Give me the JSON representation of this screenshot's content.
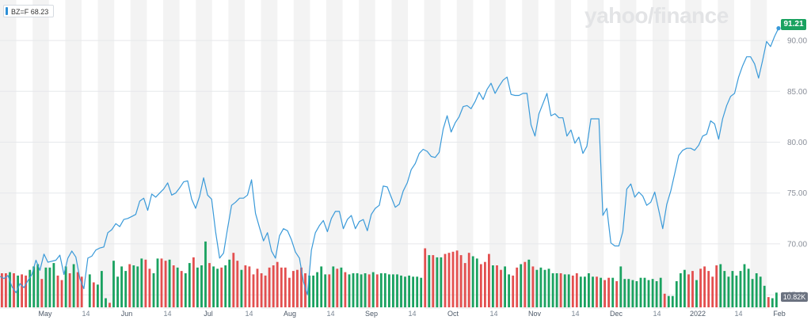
{
  "legend": {
    "ticker": "BZ=F",
    "value": "68.23"
  },
  "watermark": "yahoo/finance",
  "badges": {
    "last_price": "91.21",
    "volume": "10.82K"
  },
  "colors": {
    "price_line": "#3a9ad9",
    "up_volume": "#1aa260",
    "down_volume": "#e34f4f",
    "stripe": "#f3f3f3",
    "last_price_bg": "#1aa260"
  },
  "chart_data": {
    "type": "line",
    "x_ticks": [
      {
        "label": "May",
        "month": true
      },
      {
        "label": "14"
      },
      {
        "label": "Jun",
        "month": true
      },
      {
        "label": "14"
      },
      {
        "label": "Jul",
        "month": true
      },
      {
        "label": "14"
      },
      {
        "label": "Aug",
        "month": true
      },
      {
        "label": "14"
      },
      {
        "label": "Sep",
        "month": true
      },
      {
        "label": "14"
      },
      {
        "label": "Oct",
        "month": true
      },
      {
        "label": "14"
      },
      {
        "label": "Nov",
        "month": true
      },
      {
        "label": "14"
      },
      {
        "label": "Dec",
        "month": true
      },
      {
        "label": "14"
      },
      {
        "label": "2022",
        "month": true
      },
      {
        "label": "14"
      },
      {
        "label": "Feb",
        "month": true
      }
    ],
    "y_ticks": [
      "90.00",
      "85.00",
      "80.00",
      "75.00",
      "70.00",
      "65.00"
    ],
    "ylim": [
      64.0,
      91.8
    ],
    "series": [
      {
        "values": [
          66.8,
          66.6,
          66.9,
          65.8,
          65.2,
          66.1,
          65.7,
          66.4,
          67.0,
          68.4,
          67.4,
          69.0,
          68.2,
          68.3,
          68.4,
          68.9,
          67.0,
          68.6,
          69.3,
          68.7,
          66.6,
          65.6,
          68.6,
          68.8,
          69.4,
          69.6,
          69.7,
          71.1,
          71.4,
          72.0,
          71.7,
          72.4,
          72.5,
          72.7,
          72.9,
          74.2,
          74.5,
          73.3,
          74.9,
          74.6,
          75.0,
          75.4,
          76.0,
          74.8,
          75.0,
          75.5,
          76.1,
          76.2,
          74.4,
          73.5,
          74.7,
          76.5,
          74.8,
          74.4,
          71.2,
          68.6,
          69.1,
          71.5,
          73.8,
          74.1,
          74.5,
          74.5,
          74.8,
          76.3,
          73.0,
          71.6,
          70.3,
          71.1,
          69.3,
          68.6,
          70.8,
          71.5,
          71.3,
          70.4,
          69.2,
          68.6,
          66.3,
          65.0,
          69.4,
          71.1,
          71.8,
          72.3,
          71.2,
          72.5,
          73.2,
          73.2,
          71.5,
          72.4,
          72.8,
          71.5,
          72.2,
          72.4,
          71.3,
          72.9,
          73.5,
          73.8,
          75.7,
          75.6,
          74.6,
          73.6,
          73.9,
          75.2,
          76.0,
          77.3,
          77.9,
          78.9,
          79.3,
          79.1,
          78.6,
          78.5,
          79.0,
          81.3,
          82.6,
          81.0,
          81.9,
          82.5,
          83.5,
          83.6,
          83.3,
          84.0,
          84.9,
          84.2,
          85.2,
          85.8,
          84.8,
          85.5,
          86.1,
          86.4,
          84.7,
          84.6,
          84.6,
          84.8,
          84.8,
          81.7,
          80.6,
          82.8,
          83.8,
          84.8,
          82.6,
          82.8,
          82.4,
          82.4,
          80.6,
          81.2,
          79.9,
          80.5,
          78.9,
          79.6,
          82.3,
          82.3,
          82.3,
          72.8,
          73.5,
          70.1,
          69.8,
          69.8,
          71.2,
          75.4,
          75.9,
          74.6,
          75.1,
          74.7,
          73.8,
          74.1,
          75.1,
          73.3,
          71.5,
          73.9,
          75.2,
          76.9,
          78.7,
          79.2,
          79.4,
          79.4,
          79.2,
          79.7,
          80.6,
          80.8,
          82.1,
          81.8,
          80.3,
          82.3,
          83.6,
          84.5,
          84.8,
          86.4,
          87.5,
          88.4,
          88.4,
          87.7,
          86.3,
          88.0,
          89.9,
          89.4,
          90.4,
          91.21
        ]
      }
    ],
    "volume": {
      "label": "Volume",
      "up": [
        0,
        0,
        1,
        0,
        1,
        0,
        0,
        1,
        1,
        1,
        0,
        1,
        1,
        1,
        0,
        0,
        1,
        0,
        1,
        0,
        0,
        0,
        1,
        0,
        1,
        1,
        1,
        0,
        1,
        1,
        1,
        1,
        0,
        1,
        1,
        1,
        0,
        0,
        1,
        1,
        0,
        0,
        1,
        0,
        1,
        0,
        1,
        1,
        0,
        1,
        1,
        1,
        0,
        1,
        1,
        0,
        1,
        1,
        0,
        0,
        1,
        0,
        0,
        0,
        0,
        0,
        0,
        0,
        0,
        0,
        0,
        0,
        0,
        0,
        0,
        0,
        0,
        1,
        1,
        1,
        1,
        1,
        0,
        1,
        0,
        1,
        0,
        1,
        1,
        1,
        1,
        1,
        0,
        1,
        0,
        1,
        1,
        1,
        1,
        1,
        1,
        1,
        1,
        1,
        1,
        1,
        0,
        1,
        0,
        1,
        1,
        0,
        0,
        0,
        0,
        0,
        0,
        0,
        1,
        1,
        0,
        0,
        0,
        1,
        0,
        0,
        1,
        1,
        0,
        0,
        1,
        0,
        1,
        0,
        1,
        1,
        1,
        1,
        1,
        1,
        0,
        1,
        1,
        0,
        0,
        1,
        1,
        1,
        1,
        0,
        1,
        0,
        0,
        1,
        0,
        1,
        1,
        1,
        1,
        1,
        1,
        1,
        1,
        1,
        1,
        1,
        0,
        1,
        1,
        1,
        1,
        1,
        0,
        0,
        1,
        0,
        0,
        0,
        0,
        0,
        1,
        1,
        1,
        1,
        1,
        1,
        1,
        1,
        1,
        1,
        1,
        1,
        0,
        1,
        1,
        0,
        0,
        0
      ],
      "values": [
        30,
        30,
        31,
        30,
        28,
        29,
        28,
        33,
        36,
        38,
        25,
        35,
        35,
        39,
        28,
        24,
        36,
        30,
        38,
        31,
        27,
        0,
        29,
        22,
        20,
        32,
        8,
        4,
        41,
        27,
        36,
        32,
        38,
        37,
        36,
        43,
        42,
        34,
        30,
        43,
        43,
        41,
        42,
        37,
        35,
        32,
        30,
        39,
        44,
        35,
        37,
        58,
        39,
        36,
        34,
        35,
        37,
        42,
        48,
        41,
        33,
        37,
        36,
        29,
        34,
        30,
        28,
        35,
        37,
        40,
        35,
        35,
        26,
        32,
        33,
        35,
        30,
        28,
        28,
        31,
        36,
        29,
        29,
        36,
        34,
        35,
        31,
        29,
        30,
        30,
        29,
        30,
        29,
        31,
        29,
        30,
        30,
        29,
        29,
        29,
        28,
        27,
        28,
        27,
        27,
        26,
        52,
        46,
        46,
        44,
        44,
        47,
        48,
        49,
        50,
        46,
        39,
        48,
        45,
        43,
        38,
        40,
        47,
        37,
        37,
        33,
        36,
        29,
        28,
        35,
        38,
        40,
        42,
        36,
        33,
        35,
        33,
        34,
        30,
        30,
        30,
        29,
        29,
        28,
        30,
        27,
        27,
        30,
        27,
        27,
        26,
        24,
        26,
        26,
        23,
        36,
        25,
        25,
        24,
        23,
        26,
        26,
        24,
        25,
        23,
        26,
        12,
        10,
        10,
        23,
        30,
        33,
        29,
        32,
        24,
        34,
        36,
        32,
        27,
        37,
        38,
        32,
        27,
        32,
        28,
        32,
        38,
        34,
        25,
        30,
        27,
        19,
        9,
        8,
        13
      ]
    }
  }
}
